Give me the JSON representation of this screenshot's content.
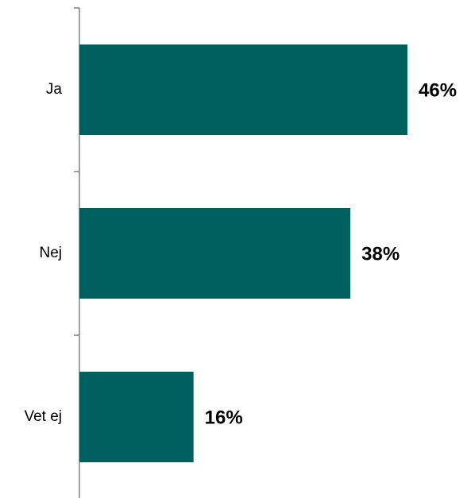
{
  "chart_data": {
    "type": "bar",
    "orientation": "horizontal",
    "categories": [
      "Ja",
      "Nej",
      "Vet ej"
    ],
    "values": [
      46,
      38,
      16
    ],
    "value_labels": [
      "46%",
      "38%",
      "16%"
    ],
    "unit": "%",
    "title": "",
    "xlabel": "",
    "ylabel": "",
    "grid": false,
    "legend": "none",
    "bar_color": "#006060"
  }
}
